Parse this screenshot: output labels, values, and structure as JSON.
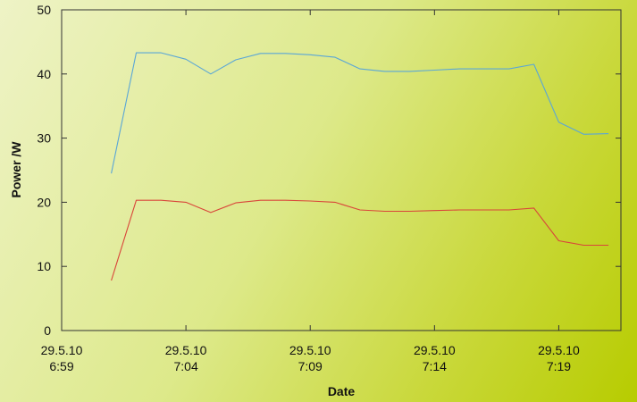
{
  "chart_data": {
    "type": "line",
    "xlabel": "Date",
    "ylabel": "Power /W",
    "ylim": [
      0,
      50
    ],
    "xlim_minutes_after_6_59": [
      0,
      22.5
    ],
    "y_ticks": [
      0,
      10,
      20,
      30,
      40,
      50
    ],
    "x_ticks": [
      {
        "line1": "29.5.10",
        "line2": "6:59",
        "minute": 0
      },
      {
        "line1": "29.5.10",
        "line2": "7:04",
        "minute": 5
      },
      {
        "line1": "29.5.10",
        "line2": "7:09",
        "minute": 10
      },
      {
        "line1": "29.5.10",
        "line2": "7:14",
        "minute": 15
      },
      {
        "line1": "29.5.10",
        "line2": "7:19",
        "minute": 20
      }
    ],
    "grid": false,
    "series": [
      {
        "color": "#5aa6d6",
        "points": [
          [
            2.0,
            24.5
          ],
          [
            3.0,
            43.3
          ],
          [
            4.0,
            43.3
          ],
          [
            5.0,
            42.3
          ],
          [
            6.0,
            40.0
          ],
          [
            7.0,
            42.2
          ],
          [
            8.0,
            43.2
          ],
          [
            9.0,
            43.2
          ],
          [
            10.0,
            43.0
          ],
          [
            11.0,
            42.6
          ],
          [
            12.0,
            40.8
          ],
          [
            13.0,
            40.4
          ],
          [
            14.0,
            40.4
          ],
          [
            15.0,
            40.6
          ],
          [
            16.0,
            40.8
          ],
          [
            17.0,
            40.8
          ],
          [
            18.0,
            40.8
          ],
          [
            19.0,
            41.5
          ],
          [
            20.0,
            32.5
          ],
          [
            21.0,
            30.6
          ],
          [
            22.0,
            30.7
          ]
        ]
      },
      {
        "color": "#d9453a",
        "points": [
          [
            2.0,
            7.8
          ],
          [
            3.0,
            20.3
          ],
          [
            4.0,
            20.3
          ],
          [
            5.0,
            20.0
          ],
          [
            6.0,
            18.4
          ],
          [
            7.0,
            19.9
          ],
          [
            8.0,
            20.3
          ],
          [
            9.0,
            20.3
          ],
          [
            10.0,
            20.2
          ],
          [
            11.0,
            20.0
          ],
          [
            12.0,
            18.8
          ],
          [
            13.0,
            18.6
          ],
          [
            14.0,
            18.6
          ],
          [
            15.0,
            18.7
          ],
          [
            16.0,
            18.8
          ],
          [
            17.0,
            18.8
          ],
          [
            18.0,
            18.8
          ],
          [
            19.0,
            19.1
          ],
          [
            20.0,
            14.0
          ],
          [
            21.0,
            13.3
          ],
          [
            22.0,
            13.3
          ]
        ]
      }
    ]
  }
}
